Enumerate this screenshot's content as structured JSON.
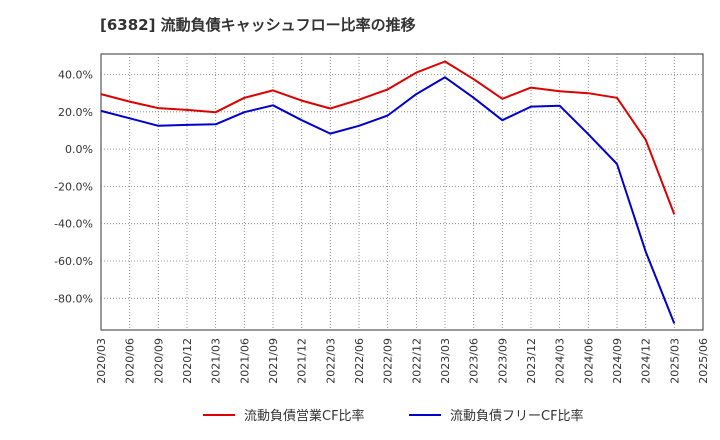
{
  "chart_data": {
    "type": "line",
    "title": "[6382]  流動負債キャッシュフロー比率の推移",
    "xlabel": "",
    "ylabel": "",
    "x": [
      "2020/03",
      "2020/06",
      "2020/09",
      "2020/12",
      "2021/03",
      "2021/06",
      "2021/09",
      "2021/12",
      "2022/03",
      "2022/06",
      "2022/09",
      "2022/12",
      "2023/03",
      "2023/06",
      "2023/09",
      "2023/12",
      "2024/03",
      "2024/06",
      "2024/09",
      "2024/12",
      "2025/03",
      "2025/06"
    ],
    "ylim": [
      -97,
      51
    ],
    "yticks": [
      40,
      20,
      0,
      -20,
      -40,
      -60,
      -80
    ],
    "ytick_labels": [
      "40.0%",
      "20.0%",
      "0.0%",
      "-20.0%",
      "-40.0%",
      "-60.0%",
      "-80.0%"
    ],
    "grid": true,
    "legend_position": "bottom",
    "series": [
      {
        "name": "流動負債営業CF比率",
        "color": "#dd0000",
        "values": [
          29.5,
          25.5,
          22.0,
          21.0,
          19.8,
          27.5,
          31.5,
          26.0,
          21.8,
          26.5,
          32.0,
          41.0,
          47.0,
          37.5,
          27.0,
          33.0,
          31.0,
          30.0,
          27.5,
          5.0,
          -35.0,
          null
        ]
      },
      {
        "name": "流動負債フリーCF比率",
        "color": "#0000cc",
        "values": [
          20.5,
          16.5,
          12.5,
          13.0,
          13.3,
          19.8,
          23.5,
          15.5,
          8.3,
          12.5,
          18.0,
          29.5,
          38.5,
          27.5,
          15.5,
          22.8,
          23.3,
          8.0,
          -8.0,
          -55.0,
          -93.5,
          null
        ]
      }
    ]
  }
}
